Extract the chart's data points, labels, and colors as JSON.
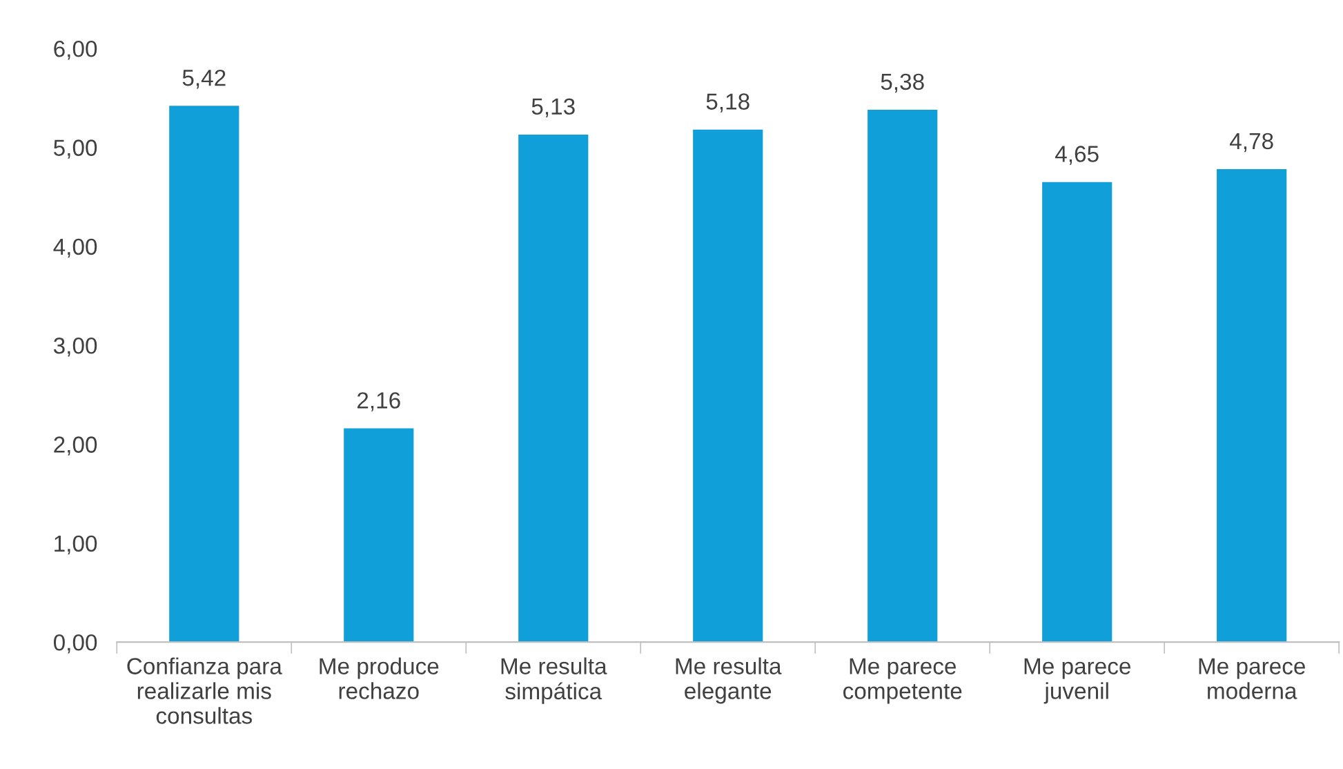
{
  "chart_data": {
    "type": "bar",
    "categories": [
      "Confianza para\nrealizarle mis\nconsultas",
      "Me produce\nrechazo",
      "Me resulta\nsimpática",
      "Me resulta\nelegante",
      "Me parece\ncompetente",
      "Me parece\njuvenil",
      "Me parece\nmoderna"
    ],
    "values": [
      5.42,
      2.16,
      5.13,
      5.18,
      5.38,
      4.65,
      4.78
    ],
    "value_labels": [
      "5,42",
      "2,16",
      "5,13",
      "5,18",
      "5,38",
      "4,65",
      "4,78"
    ],
    "color": "#109fd8",
    "ylim": [
      0,
      6
    ],
    "yticks": [
      {
        "value": 0,
        "label": "0,00"
      },
      {
        "value": 1,
        "label": "1,00"
      },
      {
        "value": 2,
        "label": "2,00"
      },
      {
        "value": 3,
        "label": "3,00"
      },
      {
        "value": 4,
        "label": "4,00"
      },
      {
        "value": 5,
        "label": "5,00"
      },
      {
        "value": 6,
        "label": "6,00"
      }
    ],
    "grid": false,
    "legend": false
  }
}
